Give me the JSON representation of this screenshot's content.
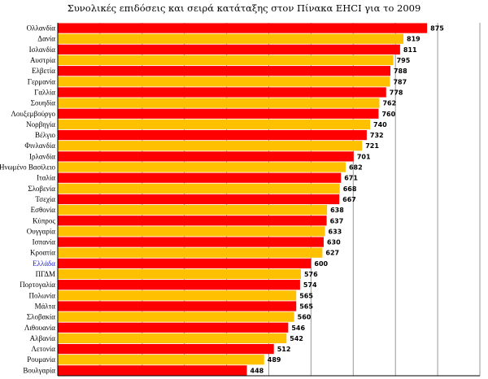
{
  "chart_data": {
    "type": "bar",
    "orientation": "horizontal",
    "title": "Συνολικές επιδόσεις και σειρά κατάταξης στον Πίνακα EHCI για το 2009",
    "xlabel": "",
    "ylabel": "",
    "xlim": [
      0,
      1000
    ],
    "xticks": [
      0,
      100,
      200,
      300,
      400,
      500,
      600,
      700,
      800,
      900,
      1000
    ],
    "grid": true,
    "legend": "none",
    "highlight_category": "Ελλάδα",
    "colors": {
      "odd": "#ff0000",
      "even": "#ffc000",
      "highlight_label": "#1f1fd0"
    },
    "categories": [
      "Ολλανδία",
      "Δανία",
      "Ισλανδία",
      "Αυστρία",
      "Ελβετία",
      "Γερμανία",
      "Γαλλία",
      "Σουηδία",
      "Λουξεμβούργο",
      "Νορβηγία",
      "Βέλγιο",
      "Φινλανδία",
      "Ιρλανδία",
      "Ηνωμένο Βασίλειο",
      "Ιταλία",
      "Σλοβενία",
      "Τσεχία",
      "Εσθονία",
      "Κύπρος",
      "Ουγγαρία",
      "Ισπανία",
      "Κροατία",
      "Ελλάδα",
      "ΠΓΔΜ",
      "Πορτογαλία",
      "Πολωνία",
      "Μάλτα",
      "Σλοβακία",
      "Λιθουανία",
      "Αλβανία",
      "Λετονία",
      "Ρουμανία",
      "Βουλγαρία"
    ],
    "values": [
      875,
      819,
      811,
      795,
      788,
      787,
      778,
      762,
      760,
      740,
      732,
      721,
      701,
      682,
      671,
      668,
      667,
      638,
      637,
      633,
      630,
      627,
      600,
      576,
      574,
      565,
      565,
      560,
      546,
      542,
      512,
      489,
      448
    ]
  }
}
